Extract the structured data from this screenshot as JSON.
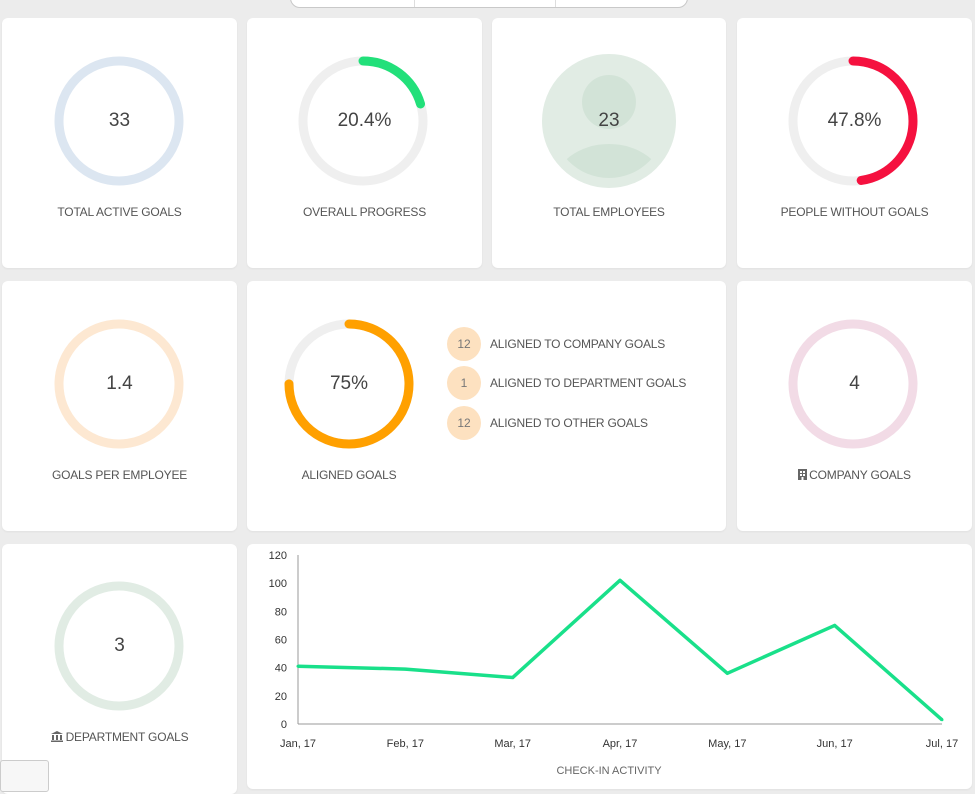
{
  "stats": {
    "total_active_goals": {
      "value": "33",
      "label": "TOTAL ACTIVE GOALS"
    },
    "overall_progress": {
      "value": "20.4%",
      "label": "OVERALL PROGRESS",
      "fraction": 0.204
    },
    "total_employees": {
      "value": "23",
      "label": "TOTAL EMPLOYEES"
    },
    "people_without_goals": {
      "value": "47.8%",
      "label": "PEOPLE WITHOUT GOALS",
      "fraction": 0.478
    },
    "goals_per_employee": {
      "value": "1.4",
      "label": "GOALS PER EMPLOYEE"
    },
    "aligned_goals": {
      "value": "75%",
      "label": "ALIGNED GOALS",
      "fraction": 0.75
    },
    "company_goals": {
      "value": "4",
      "label": "COMPANY GOALS"
    },
    "department_goals": {
      "value": "3",
      "label": "DEPARTMENT GOALS"
    }
  },
  "aligned_breakdown": [
    {
      "count": "12",
      "label": "ALIGNED TO COMPANY GOALS"
    },
    {
      "count": "1",
      "label": "ALIGNED TO DEPARTMENT GOALS"
    },
    {
      "count": "12",
      "label": "ALIGNED TO OTHER GOALS"
    }
  ],
  "icons": {
    "company": "building-icon",
    "department": "bank-icon",
    "employee": "person-icon"
  },
  "colors": {
    "progress_green": "#22e07a",
    "without_goals_red": "#f5113f",
    "aligned_orange": "#ffa000",
    "line_green": "#19e08a",
    "ring_blue": "#dce6f1",
    "ring_peach": "#fde8d2",
    "ring_pink": "#f2dbe6",
    "ring_mint": "#e1ece4",
    "ring_gray": "#efefef"
  },
  "chart_data": {
    "type": "line",
    "categories": [
      "Jan, 17",
      "Feb, 17",
      "Mar, 17",
      "Apr, 17",
      "May, 17",
      "Jun, 17",
      "Jul, 17"
    ],
    "values": [
      41,
      39,
      33,
      102,
      36,
      70,
      3
    ],
    "xlabel": "CHECK-IN ACTIVITY",
    "ylabel": "",
    "ylim": [
      0,
      120
    ],
    "yticks": [
      "0",
      "20",
      "40",
      "60",
      "80",
      "100",
      "120"
    ],
    "grid": false,
    "legend": "none"
  }
}
